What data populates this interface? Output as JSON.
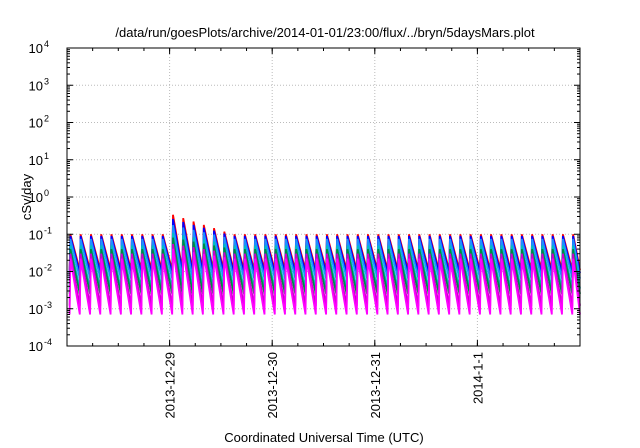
{
  "chart_data": {
    "type": "line",
    "title": "/data/run/goesPlots/archive/2014-01-01/23:00/flux/../bryn/5daysMars.plot",
    "xlabel": "Coordinated Universal Time (UTC)",
    "ylabel": "cSv/day",
    "yscale": "log",
    "ylim": [
      0.0001,
      10000
    ],
    "yticks": [
      {
        "value": 0.0001,
        "base": "10",
        "exp": "-4"
      },
      {
        "value": 0.001,
        "base": "10",
        "exp": "-3"
      },
      {
        "value": 0.01,
        "base": "10",
        "exp": "-2"
      },
      {
        "value": 0.1,
        "base": "10",
        "exp": "-1"
      },
      {
        "value": 1,
        "base": "10",
        "exp": "0"
      },
      {
        "value": 10,
        "base": "10",
        "exp": "1"
      },
      {
        "value": 100,
        "base": "10",
        "exp": "2"
      },
      {
        "value": 1000,
        "base": "10",
        "exp": "3"
      },
      {
        "value": 10000,
        "base": "10",
        "exp": "4"
      }
    ],
    "xlim": [
      "2013-12-28 00:00",
      "2014-01-02 00:00"
    ],
    "xticks": [
      {
        "date": "2013-12-29 00:00",
        "label": "2013-12-29"
      },
      {
        "date": "2013-12-30 00:00",
        "label": "2013-12-30"
      },
      {
        "date": "2013-12-31 00:00",
        "label": "2013-12-31"
      },
      {
        "date": "2014-01-01 00:00",
        "label": "2014-1-1"
      }
    ],
    "grid": true,
    "legend": "none",
    "pattern": {
      "shape": "sawtooth",
      "cycles_per_day": 10,
      "enhanced_interval": [
        "2013-12-28 22:30",
        "2013-12-29 14:30"
      ]
    },
    "series": [
      {
        "color": "#ff0000",
        "peak": 0.1,
        "trough": 0.011,
        "enhanced_peak": 0.4
      },
      {
        "color": "#0000ff",
        "peak": 0.09,
        "trough": 0.009,
        "enhanced_peak": 0.3
      },
      {
        "color": "#1e90ff",
        "peak": 0.075,
        "trough": 0.0065,
        "enhanced_peak": 0.2
      },
      {
        "color": "#00c0c0",
        "peak": 0.05,
        "trough": 0.0035,
        "enhanced_peak": 0.12
      },
      {
        "color": "#008a45",
        "peak": 0.04,
        "trough": 0.0025,
        "enhanced_peak": 0.09
      },
      {
        "color": "#cc00cc",
        "peak": 0.03,
        "trough": 0.0012,
        "enhanced_peak": 0.06
      },
      {
        "color": "#ff00ff",
        "peak": 0.022,
        "trough": 0.0007,
        "enhanced_peak": 0.045
      }
    ]
  }
}
